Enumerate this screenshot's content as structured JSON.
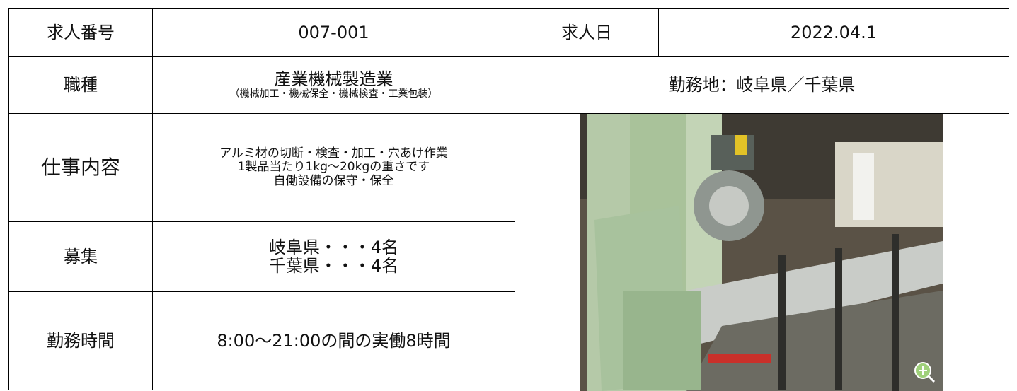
{
  "table": {
    "rows": [
      [
        "求人番号",
        "007-001",
        "求人日",
        "2022.04.1"
      ],
      [
        "職種",
        [
          "産業機械製造業",
          "（機械加工・機械保全・機械検査・工業包装）"
        ],
        "勤務地：岐阜県／千葉県"
      ],
      [
        "仕事内容",
        [
          "アルミ材の切断・検査・加工・穴あけ作業",
          "1製品当たり1kg〜20kgの重さです",
          "自働設備の保守・保全"
        ]
      ],
      [
        "募集",
        [
          "岐阜県・・・4名",
          "千葉県・・・4名"
        ]
      ],
      [
        "勤務時間",
        "8:00〜21:00の間の実働8時間"
      ]
    ]
  }
}
